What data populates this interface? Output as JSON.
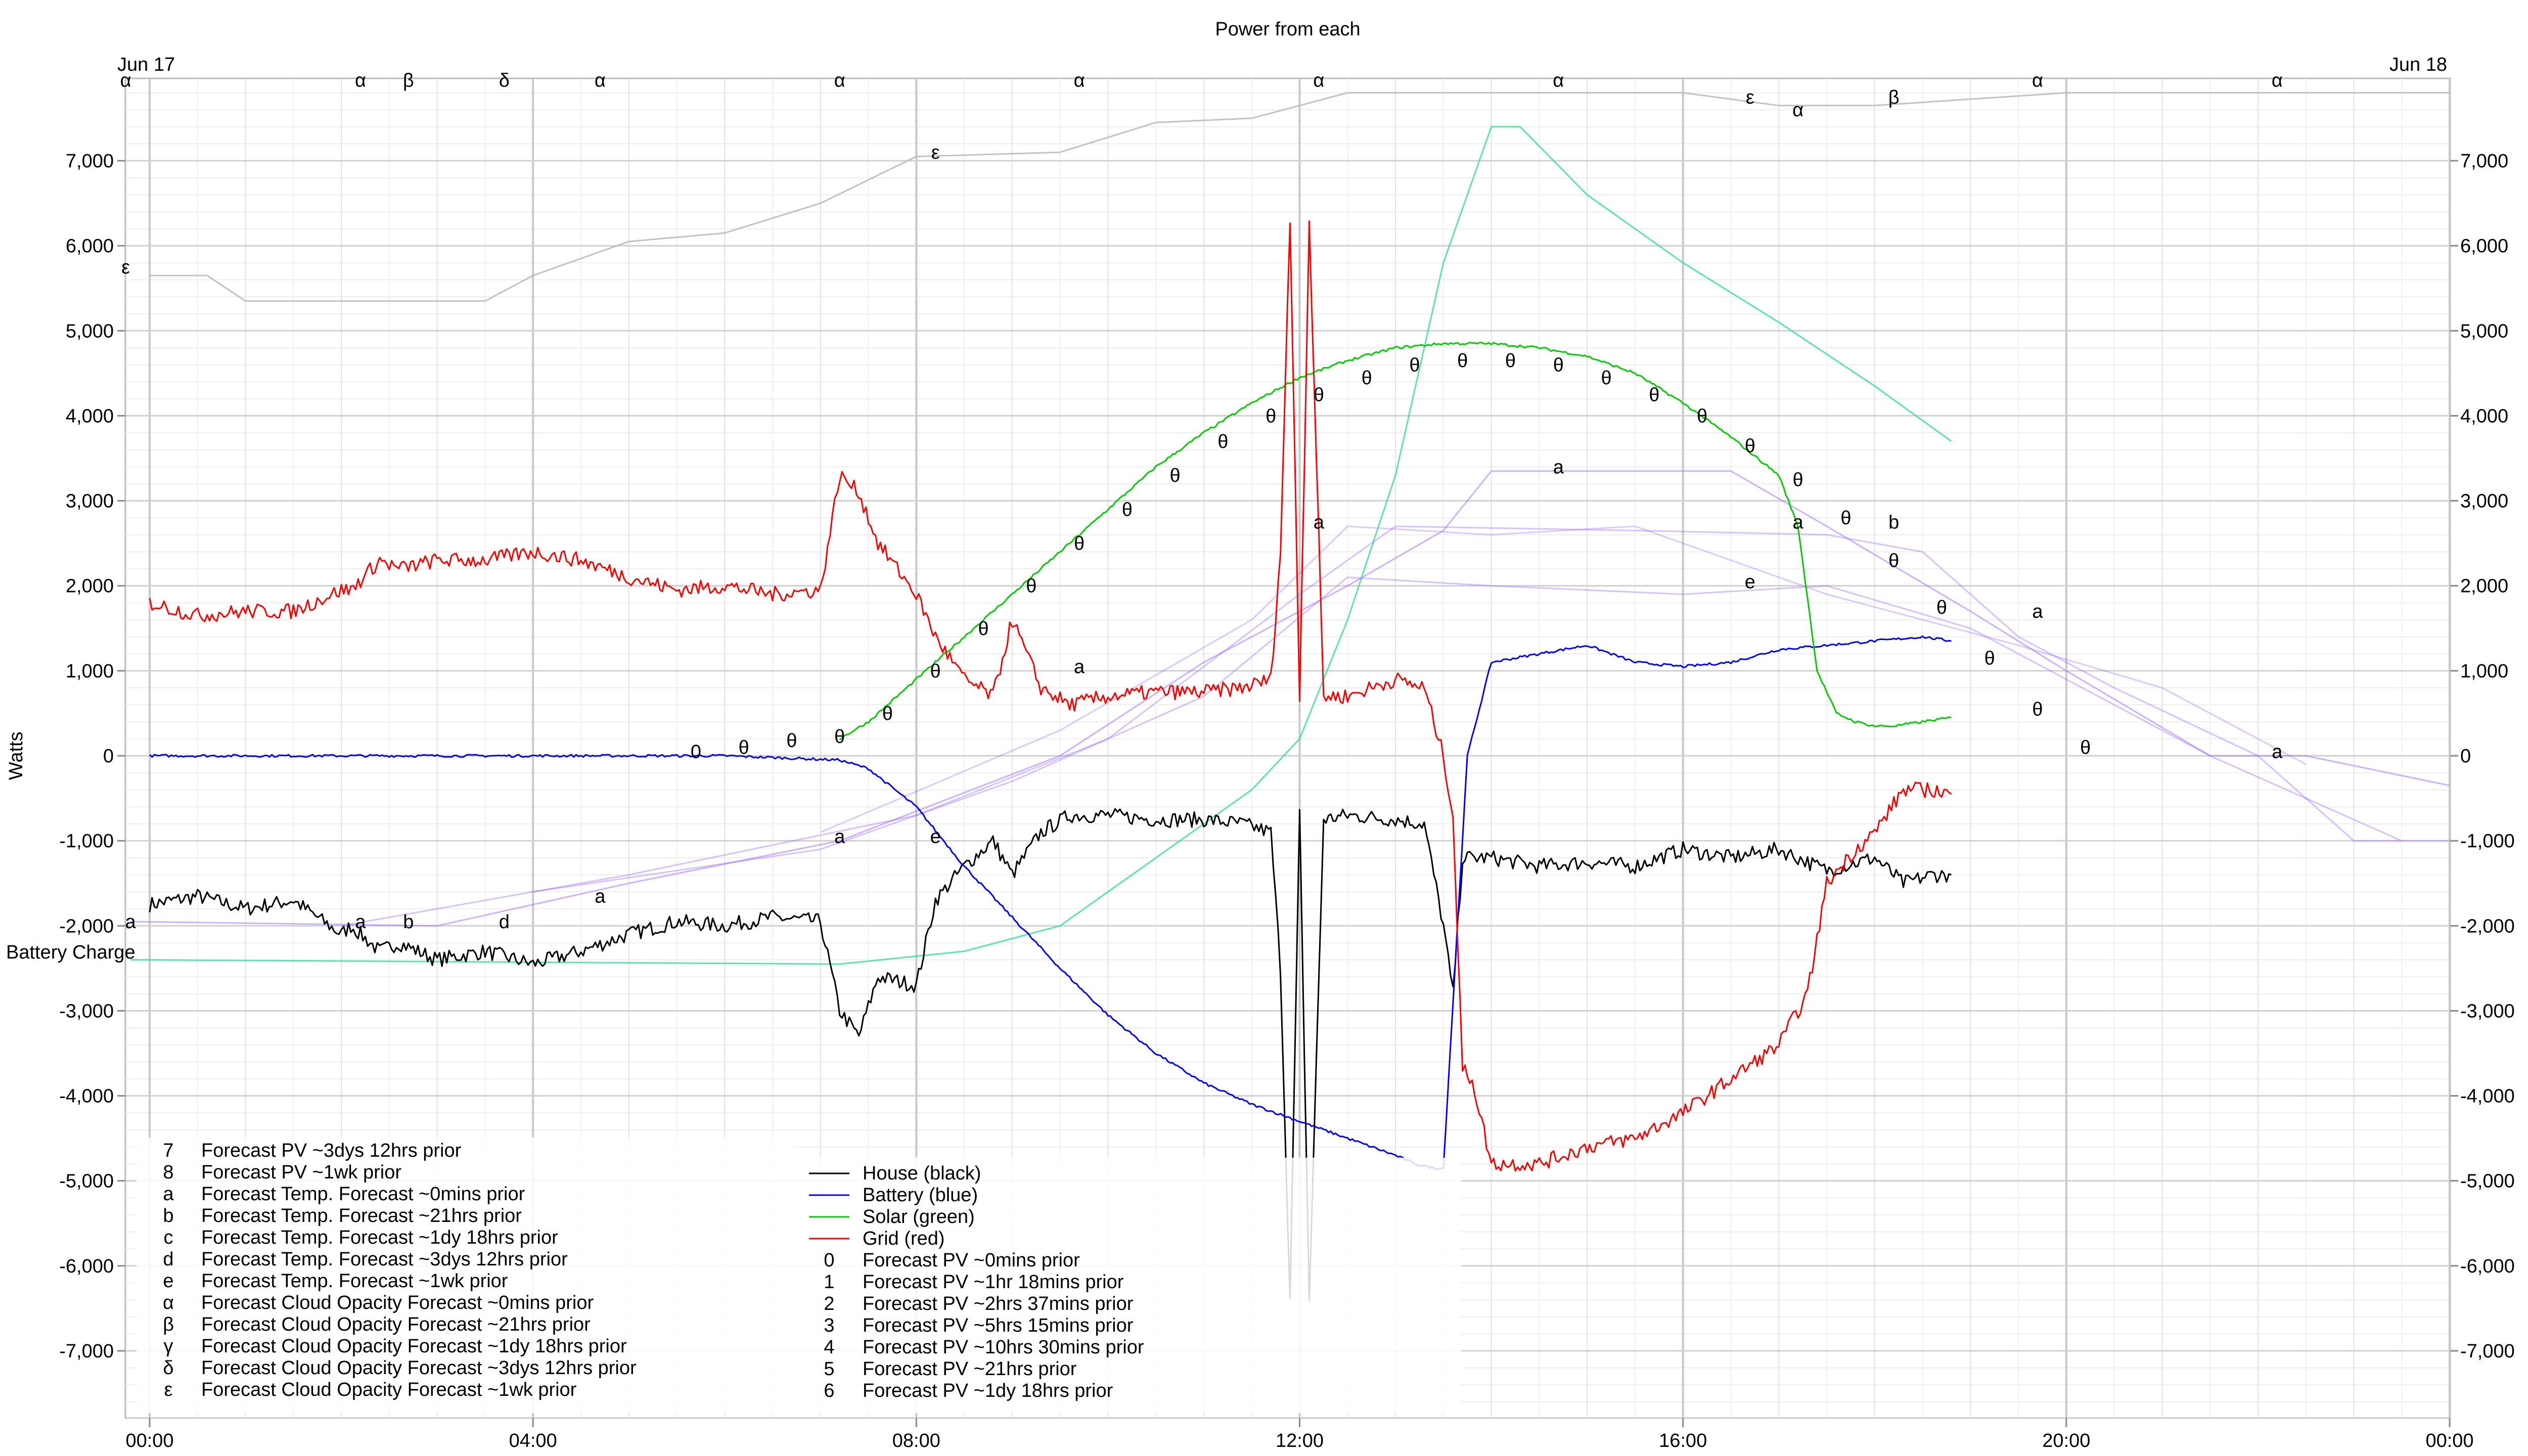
{
  "chart_data": {
    "type": "line",
    "title": "Power from each",
    "ylabel": "Watts",
    "ylim": [
      -7800,
      7800
    ],
    "xlim_hours": [
      0,
      24.3
    ],
    "battery_label": "Battery Charge",
    "date_labels": [
      "Jun 17",
      "Jun 18"
    ],
    "y_ticks": [
      7000,
      6000,
      5000,
      4000,
      3000,
      2000,
      1000,
      0,
      -1000,
      -2000,
      -3000,
      -4000,
      -5000,
      -6000,
      -7000
    ],
    "y_tick_labels": [
      "7,000",
      "6,000",
      "5,000",
      "4,000",
      "3,000",
      "2,000",
      "1,000",
      "0",
      "-1,000",
      "-2,000",
      "-3,000",
      "-4,000",
      "-5,000",
      "-6,000",
      "-7,000"
    ],
    "x_ticks": [
      0,
      4,
      8,
      12,
      16,
      20,
      24
    ],
    "x_tick_labels": [
      "00:00",
      "04:00",
      "08:00",
      "12:00",
      "16:00",
      "20:00",
      "00:00"
    ],
    "colors": {
      "house": "#000000",
      "battery": "#0000ff",
      "solar": "#00cc00",
      "grid": "#ff0000",
      "forecast_temp": "#9966ff",
      "forecast_cloud": "#bbbbbb",
      "forecast_solar_light": "#33dd99",
      "grid_line": "#d8d8d8"
    },
    "series": [
      {
        "name": "House (black)",
        "x": [
          0,
          0.5,
          1,
          1.5,
          2,
          2.1,
          2.4,
          2.6,
          3,
          3.5,
          4,
          4.5,
          5,
          5.5,
          6,
          6.5,
          7,
          7.2,
          7.4,
          7.6,
          8,
          8.2,
          8.5,
          8.8,
          9,
          9.3,
          9.6,
          10,
          10.5,
          11,
          11.4,
          11.7,
          11.8,
          11.9,
          12,
          12.1,
          12.25,
          12.5,
          13,
          13.3,
          13.5,
          13.6,
          13.7,
          14,
          14.5,
          15,
          15.5,
          16,
          16.5,
          17,
          17.5,
          18,
          18.3,
          18.6,
          18.8
        ],
        "values": [
          -1750,
          -1650,
          -1800,
          -1700,
          -2100,
          -2000,
          -2300,
          -2200,
          -2400,
          -2300,
          -2450,
          -2300,
          -2100,
          -1950,
          -2000,
          -1900,
          -1950,
          -3000,
          -3300,
          -2600,
          -2700,
          -1700,
          -1300,
          -1000,
          -1400,
          -900,
          -700,
          -700,
          -750,
          -750,
          -800,
          -900,
          -2500,
          -6400,
          -700,
          -6400,
          -750,
          -700,
          -750,
          -800,
          -2000,
          -2800,
          -1200,
          -1200,
          -1300,
          -1250,
          -1300,
          -1100,
          -1200,
          -1100,
          -1350,
          -1200,
          -1500,
          -1400,
          -1400
        ]
      },
      {
        "name": "Battery (blue)",
        "x": [
          0,
          6,
          7.2,
          7.5,
          8,
          8.5,
          9,
          9.5,
          10,
          10.5,
          11,
          11.5,
          12,
          12.5,
          13,
          13.2,
          13.4,
          13.5,
          13.75,
          14,
          14.5,
          15,
          15.5,
          16,
          16.5,
          17,
          17.5,
          18,
          18.5,
          18.8
        ],
        "values": [
          0,
          0,
          -50,
          -150,
          -600,
          -1300,
          -1900,
          -2500,
          -3050,
          -3500,
          -3850,
          -4100,
          -4300,
          -4500,
          -4700,
          -4800,
          -4850,
          -4850,
          0,
          1100,
          1200,
          1300,
          1100,
          1050,
          1100,
          1250,
          1300,
          1350,
          1400,
          1350
        ]
      },
      {
        "name": "Solar (green)",
        "x": [
          7.2,
          7.5,
          8,
          8.5,
          9,
          9.5,
          10,
          10.5,
          11,
          11.5,
          12,
          12.5,
          13,
          13.5,
          14,
          14.5,
          15,
          15.5,
          16,
          16.5,
          17,
          17.2,
          17.4,
          17.6,
          17.8,
          18,
          18.2,
          18.5,
          18.8
        ],
        "values": [
          200,
          400,
          900,
          1400,
          1900,
          2400,
          2900,
          3400,
          3800,
          4150,
          4450,
          4650,
          4800,
          4850,
          4850,
          4800,
          4700,
          4500,
          4150,
          3750,
          3300,
          2700,
          1000,
          500,
          400,
          350,
          350,
          400,
          450
        ]
      },
      {
        "name": "Grid (red)",
        "x": [
          0,
          0.5,
          1,
          1.5,
          2,
          2.1,
          2.4,
          2.6,
          3,
          3.5,
          4,
          4.5,
          5,
          5.5,
          6,
          6.5,
          7,
          7.2,
          7.4,
          7.6,
          8,
          8.2,
          8.5,
          8.8,
          9,
          9.3,
          9.6,
          10,
          10.5,
          11,
          11.4,
          11.7,
          11.8,
          11.9,
          12,
          12.1,
          12.25,
          12.5,
          13,
          13.3,
          13.5,
          13.6,
          13.7,
          13.8,
          14,
          14.5,
          15,
          15.5,
          16,
          16.5,
          17,
          17.3,
          17.5,
          17.8,
          18,
          18.3,
          18.6,
          18.8
        ],
        "values": [
          1800,
          1650,
          1700,
          1700,
          1950,
          1950,
          2300,
          2200,
          2300,
          2300,
          2400,
          2300,
          2100,
          1950,
          2000,
          1900,
          1950,
          3300,
          3100,
          2500,
          1900,
          1400,
          900,
          700,
          1600,
          800,
          600,
          700,
          750,
          750,
          800,
          900,
          2400,
          6300,
          700,
          6300,
          700,
          700,
          900,
          800,
          0,
          -700,
          -3700,
          -3800,
          -4800,
          -4800,
          -4600,
          -4500,
          -4200,
          -3800,
          -3400,
          -2800,
          -1500,
          -1100,
          -900,
          -400,
          -400,
          -450
        ]
      }
    ],
    "forecast_pv_markers": [
      {
        "hour": 5.7,
        "label": "0",
        "value": 50
      },
      {
        "hour": 6.2,
        "label": "θ",
        "value": 100
      },
      {
        "hour": 6.7,
        "label": "θ",
        "value": 180
      },
      {
        "hour": 7.2,
        "label": "θ",
        "value": 230
      },
      {
        "hour": 7.7,
        "label": "θ",
        "value": 500
      },
      {
        "hour": 8.2,
        "label": "θ",
        "value": 1000
      },
      {
        "hour": 8.7,
        "label": "θ",
        "value": 1500
      },
      {
        "hour": 9.2,
        "label": "θ",
        "value": 2000
      },
      {
        "hour": 9.7,
        "label": "θ",
        "value": 2500
      },
      {
        "hour": 10.2,
        "label": "θ",
        "value": 2900
      },
      {
        "hour": 10.7,
        "label": "θ",
        "value": 3300
      },
      {
        "hour": 11.2,
        "label": "θ",
        "value": 3700
      },
      {
        "hour": 11.7,
        "label": "θ",
        "value": 4000
      },
      {
        "hour": 12.2,
        "label": "θ",
        "value": 4250
      },
      {
        "hour": 12.7,
        "label": "θ",
        "value": 4450
      },
      {
        "hour": 13.2,
        "label": "θ",
        "value": 4600
      },
      {
        "hour": 13.7,
        "label": "θ",
        "value": 4650
      },
      {
        "hour": 14.2,
        "label": "θ",
        "value": 4650
      },
      {
        "hour": 14.7,
        "label": "θ",
        "value": 4600
      },
      {
        "hour": 15.2,
        "label": "θ",
        "value": 4450
      },
      {
        "hour": 15.7,
        "label": "θ",
        "value": 4250
      },
      {
        "hour": 16.2,
        "label": "θ",
        "value": 4000
      },
      {
        "hour": 16.7,
        "label": "θ",
        "value": 3650
      },
      {
        "hour": 17.2,
        "label": "θ",
        "value": 3250
      },
      {
        "hour": 17.7,
        "label": "θ",
        "value": 2800
      },
      {
        "hour": 18.2,
        "label": "θ",
        "value": 2300
      },
      {
        "hour": 18.7,
        "label": "θ",
        "value": 1750
      },
      {
        "hour": 19.2,
        "label": "θ",
        "value": 1150
      },
      {
        "hour": 19.7,
        "label": "θ",
        "value": 550
      },
      {
        "hour": 20.2,
        "label": "θ",
        "value": 100
      }
    ],
    "forecast_temp_markers": [
      {
        "hour": -0.2,
        "label": "a",
        "value": -1950
      },
      {
        "hour": 2.2,
        "label": "a",
        "value": -1950
      },
      {
        "hour": 2.7,
        "label": "b",
        "value": -1950
      },
      {
        "hour": 3.7,
        "label": "d",
        "value": -1950
      },
      {
        "hour": 4.7,
        "label": "a",
        "value": -1650
      },
      {
        "hour": 7.2,
        "label": "a",
        "value": -950
      },
      {
        "hour": 8.2,
        "label": "e",
        "value": -950
      },
      {
        "hour": 9.7,
        "label": "a",
        "value": 1050
      },
      {
        "hour": 12.2,
        "label": "a",
        "value": 2750
      },
      {
        "hour": 14.7,
        "label": "a",
        "value": 3400
      },
      {
        "hour": 16.7,
        "label": "e",
        "value": 2050
      },
      {
        "hour": 17.2,
        "label": "a",
        "value": 2750
      },
      {
        "hour": 18.2,
        "label": "b",
        "value": 2750
      },
      {
        "hour": 19.7,
        "label": "a",
        "value": 1700
      },
      {
        "hour": 22.2,
        "label": "a",
        "value": 50
      }
    ],
    "forecast_cloud_markers": [
      {
        "hour": -0.25,
        "label": "α",
        "value": 7950
      },
      {
        "hour": 2.2,
        "label": "α",
        "value": 7950
      },
      {
        "hour": 2.7,
        "label": "β",
        "value": 7950
      },
      {
        "hour": 3.7,
        "label": "δ",
        "value": 7950
      },
      {
        "hour": 4.7,
        "label": "α",
        "value": 7950
      },
      {
        "hour": 7.2,
        "label": "α",
        "value": 7950
      },
      {
        "hour": 9.7,
        "label": "α",
        "value": 7950
      },
      {
        "hour": 12.2,
        "label": "α",
        "value": 7950
      },
      {
        "hour": 14.7,
        "label": "α",
        "value": 7950
      },
      {
        "hour": 16.7,
        "label": "ε",
        "value": 7750
      },
      {
        "hour": 17.2,
        "label": "α",
        "value": 7600
      },
      {
        "hour": 18.2,
        "label": "β",
        "value": 7750
      },
      {
        "hour": 19.7,
        "label": "α",
        "value": 7950
      },
      {
        "hour": 22.2,
        "label": "α",
        "value": 7950
      },
      {
        "hour": -0.25,
        "label": "ε",
        "value": 5750
      },
      {
        "hour": 8.2,
        "label": "ε",
        "value": 7100
      }
    ],
    "legend_left": [
      {
        "symbol": "7",
        "label": "Forecast PV ~3dys 12hrs prior"
      },
      {
        "symbol": "8",
        "label": "Forecast PV ~1wk prior"
      },
      {
        "symbol": "a",
        "label": "Forecast Temp. Forecast ~0mins prior"
      },
      {
        "symbol": "b",
        "label": "Forecast Temp. Forecast ~21hrs prior"
      },
      {
        "symbol": "c",
        "label": "Forecast Temp. Forecast ~1dy 18hrs prior"
      },
      {
        "symbol": "d",
        "label": "Forecast Temp. Forecast ~3dys 12hrs prior"
      },
      {
        "symbol": "e",
        "label": "Forecast Temp. Forecast ~1wk prior"
      },
      {
        "symbol": "α",
        "label": "Forecast Cloud Opacity Forecast ~0mins prior"
      },
      {
        "symbol": "β",
        "label": "Forecast Cloud Opacity Forecast ~21hrs prior"
      },
      {
        "symbol": "γ",
        "label": "Forecast Cloud Opacity Forecast ~1dy 18hrs prior"
      },
      {
        "symbol": "δ",
        "label": "Forecast Cloud Opacity Forecast ~3dys 12hrs prior"
      },
      {
        "symbol": "ε",
        "label": "Forecast Cloud Opacity Forecast ~1wk prior"
      }
    ],
    "legend_right": [
      {
        "symbol": "",
        "label": "House (black)",
        "color": "#000000"
      },
      {
        "symbol": "",
        "label": "Battery (blue)",
        "color": "#0000ff"
      },
      {
        "symbol": "",
        "label": "Solar (green)",
        "color": "#00cc00"
      },
      {
        "symbol": "",
        "label": "Grid (red)",
        "color": "#ff0000"
      },
      {
        "symbol": "0",
        "label": "Forecast PV ~0mins prior"
      },
      {
        "symbol": "1",
        "label": "Forecast PV ~1hr 18mins prior"
      },
      {
        "symbol": "2",
        "label": "Forecast PV ~2hrs 37mins prior"
      },
      {
        "symbol": "3",
        "label": "Forecast PV ~5hrs 15mins prior"
      },
      {
        "symbol": "4",
        "label": "Forecast PV ~10hrs 30mins prior"
      },
      {
        "symbol": "5",
        "label": "Forecast PV ~21hrs prior"
      },
      {
        "symbol": "6",
        "label": "Forecast PV ~1dy 18hrs prior"
      }
    ]
  }
}
